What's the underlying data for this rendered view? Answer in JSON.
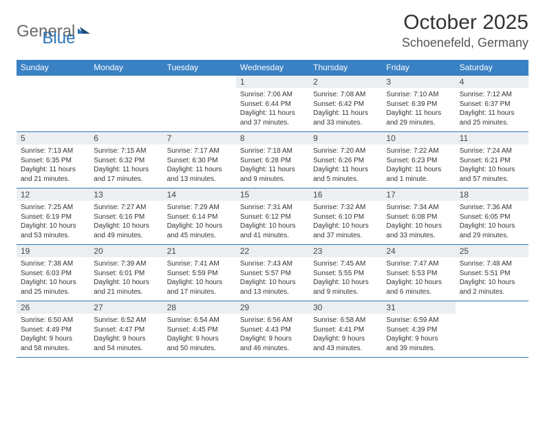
{
  "logo": {
    "gray": "General",
    "blue": "Blue"
  },
  "title": "October 2025",
  "location": "Schoenefeld, Germany",
  "colors": {
    "header_bg": "#3a81c4",
    "border": "#2e75b6",
    "daynum_bg": "#eceff2",
    "text": "#333333"
  },
  "day_headers": [
    "Sunday",
    "Monday",
    "Tuesday",
    "Wednesday",
    "Thursday",
    "Friday",
    "Saturday"
  ],
  "weeks": [
    [
      null,
      null,
      null,
      {
        "n": "1",
        "sr": "Sunrise: 7:06 AM",
        "ss": "Sunset: 6:44 PM",
        "dl": "Daylight: 11 hours and 37 minutes."
      },
      {
        "n": "2",
        "sr": "Sunrise: 7:08 AM",
        "ss": "Sunset: 6:42 PM",
        "dl": "Daylight: 11 hours and 33 minutes."
      },
      {
        "n": "3",
        "sr": "Sunrise: 7:10 AM",
        "ss": "Sunset: 6:39 PM",
        "dl": "Daylight: 11 hours and 29 minutes."
      },
      {
        "n": "4",
        "sr": "Sunrise: 7:12 AM",
        "ss": "Sunset: 6:37 PM",
        "dl": "Daylight: 11 hours and 25 minutes."
      }
    ],
    [
      {
        "n": "5",
        "sr": "Sunrise: 7:13 AM",
        "ss": "Sunset: 6:35 PM",
        "dl": "Daylight: 11 hours and 21 minutes."
      },
      {
        "n": "6",
        "sr": "Sunrise: 7:15 AM",
        "ss": "Sunset: 6:32 PM",
        "dl": "Daylight: 11 hours and 17 minutes."
      },
      {
        "n": "7",
        "sr": "Sunrise: 7:17 AM",
        "ss": "Sunset: 6:30 PM",
        "dl": "Daylight: 11 hours and 13 minutes."
      },
      {
        "n": "8",
        "sr": "Sunrise: 7:18 AM",
        "ss": "Sunset: 6:28 PM",
        "dl": "Daylight: 11 hours and 9 minutes."
      },
      {
        "n": "9",
        "sr": "Sunrise: 7:20 AM",
        "ss": "Sunset: 6:26 PM",
        "dl": "Daylight: 11 hours and 5 minutes."
      },
      {
        "n": "10",
        "sr": "Sunrise: 7:22 AM",
        "ss": "Sunset: 6:23 PM",
        "dl": "Daylight: 11 hours and 1 minute."
      },
      {
        "n": "11",
        "sr": "Sunrise: 7:24 AM",
        "ss": "Sunset: 6:21 PM",
        "dl": "Daylight: 10 hours and 57 minutes."
      }
    ],
    [
      {
        "n": "12",
        "sr": "Sunrise: 7:25 AM",
        "ss": "Sunset: 6:19 PM",
        "dl": "Daylight: 10 hours and 53 minutes."
      },
      {
        "n": "13",
        "sr": "Sunrise: 7:27 AM",
        "ss": "Sunset: 6:16 PM",
        "dl": "Daylight: 10 hours and 49 minutes."
      },
      {
        "n": "14",
        "sr": "Sunrise: 7:29 AM",
        "ss": "Sunset: 6:14 PM",
        "dl": "Daylight: 10 hours and 45 minutes."
      },
      {
        "n": "15",
        "sr": "Sunrise: 7:31 AM",
        "ss": "Sunset: 6:12 PM",
        "dl": "Daylight: 10 hours and 41 minutes."
      },
      {
        "n": "16",
        "sr": "Sunrise: 7:32 AM",
        "ss": "Sunset: 6:10 PM",
        "dl": "Daylight: 10 hours and 37 minutes."
      },
      {
        "n": "17",
        "sr": "Sunrise: 7:34 AM",
        "ss": "Sunset: 6:08 PM",
        "dl": "Daylight: 10 hours and 33 minutes."
      },
      {
        "n": "18",
        "sr": "Sunrise: 7:36 AM",
        "ss": "Sunset: 6:05 PM",
        "dl": "Daylight: 10 hours and 29 minutes."
      }
    ],
    [
      {
        "n": "19",
        "sr": "Sunrise: 7:38 AM",
        "ss": "Sunset: 6:03 PM",
        "dl": "Daylight: 10 hours and 25 minutes."
      },
      {
        "n": "20",
        "sr": "Sunrise: 7:39 AM",
        "ss": "Sunset: 6:01 PM",
        "dl": "Daylight: 10 hours and 21 minutes."
      },
      {
        "n": "21",
        "sr": "Sunrise: 7:41 AM",
        "ss": "Sunset: 5:59 PM",
        "dl": "Daylight: 10 hours and 17 minutes."
      },
      {
        "n": "22",
        "sr": "Sunrise: 7:43 AM",
        "ss": "Sunset: 5:57 PM",
        "dl": "Daylight: 10 hours and 13 minutes."
      },
      {
        "n": "23",
        "sr": "Sunrise: 7:45 AM",
        "ss": "Sunset: 5:55 PM",
        "dl": "Daylight: 10 hours and 9 minutes."
      },
      {
        "n": "24",
        "sr": "Sunrise: 7:47 AM",
        "ss": "Sunset: 5:53 PM",
        "dl": "Daylight: 10 hours and 6 minutes."
      },
      {
        "n": "25",
        "sr": "Sunrise: 7:48 AM",
        "ss": "Sunset: 5:51 PM",
        "dl": "Daylight: 10 hours and 2 minutes."
      }
    ],
    [
      {
        "n": "26",
        "sr": "Sunrise: 6:50 AM",
        "ss": "Sunset: 4:49 PM",
        "dl": "Daylight: 9 hours and 58 minutes."
      },
      {
        "n": "27",
        "sr": "Sunrise: 6:52 AM",
        "ss": "Sunset: 4:47 PM",
        "dl": "Daylight: 9 hours and 54 minutes."
      },
      {
        "n": "28",
        "sr": "Sunrise: 6:54 AM",
        "ss": "Sunset: 4:45 PM",
        "dl": "Daylight: 9 hours and 50 minutes."
      },
      {
        "n": "29",
        "sr": "Sunrise: 6:56 AM",
        "ss": "Sunset: 4:43 PM",
        "dl": "Daylight: 9 hours and 46 minutes."
      },
      {
        "n": "30",
        "sr": "Sunrise: 6:58 AM",
        "ss": "Sunset: 4:41 PM",
        "dl": "Daylight: 9 hours and 43 minutes."
      },
      {
        "n": "31",
        "sr": "Sunrise: 6:59 AM",
        "ss": "Sunset: 4:39 PM",
        "dl": "Daylight: 9 hours and 39 minutes."
      },
      null
    ]
  ]
}
